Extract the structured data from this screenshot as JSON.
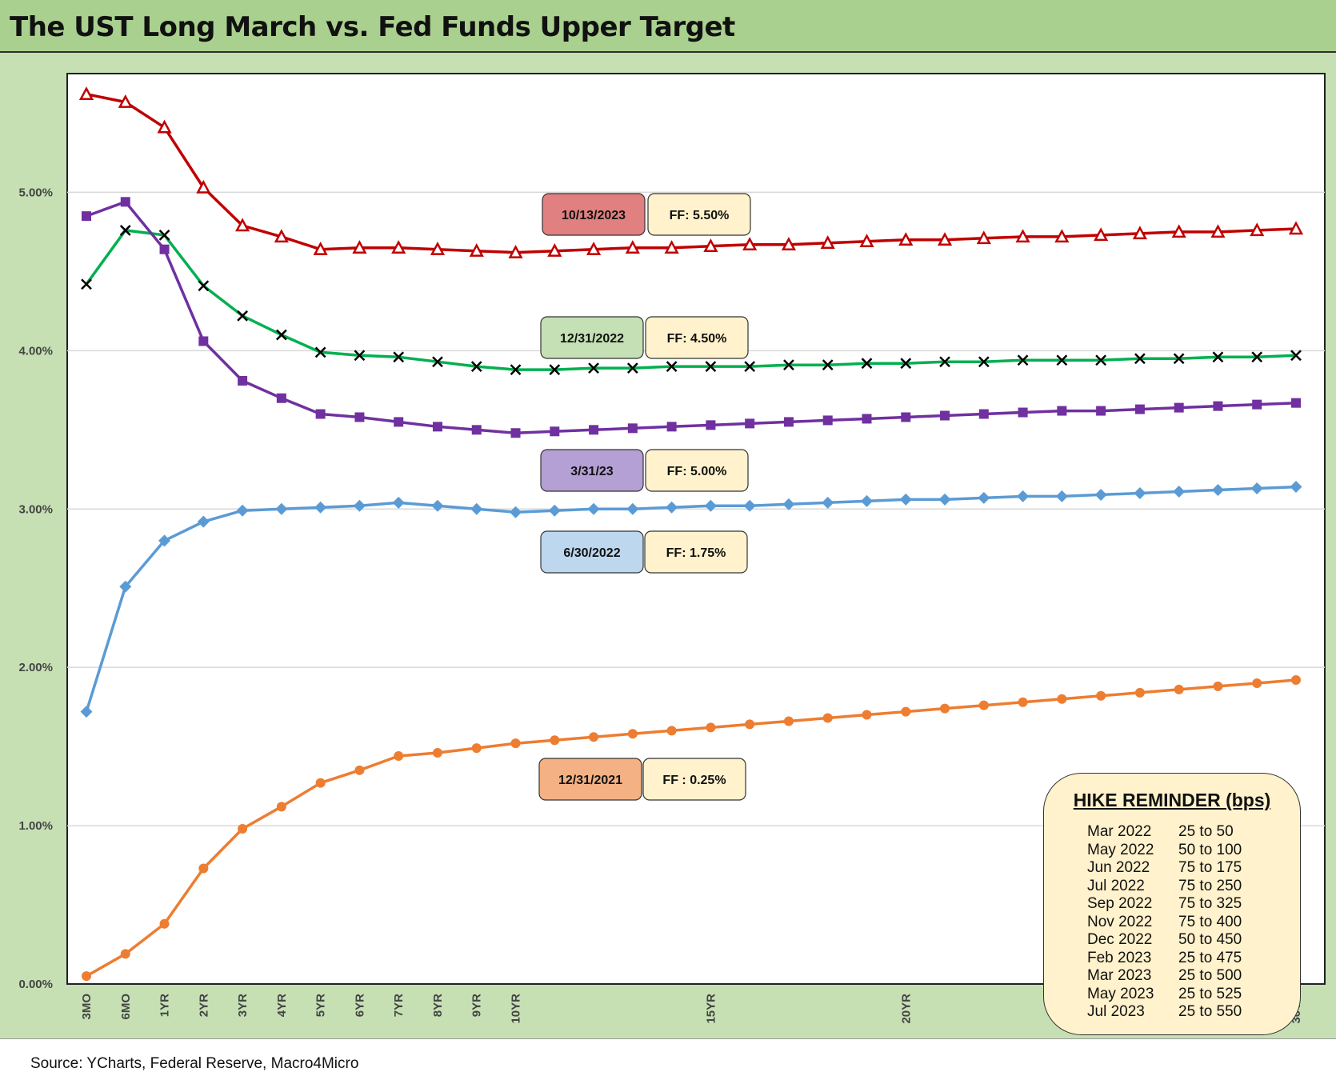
{
  "title": "The UST Long March vs. Fed Funds Upper Target",
  "source": "Source: YCharts, Federal Reserve, Macro4Micro",
  "hike_box": {
    "title": "HIKE REMINDER (bps)",
    "rows": [
      {
        "date": "Mar 2022",
        "value": "25 to 50"
      },
      {
        "date": "May 2022",
        "value": "50 to 100"
      },
      {
        "date": "Jun 2022",
        "value": "75 to 175"
      },
      {
        "date": "Jul 2022",
        "value": "75 to 250"
      },
      {
        "date": "Sep 2022",
        "value": "75 to 325"
      },
      {
        "date": "Nov 2022",
        "value": "75 to 400"
      },
      {
        "date": "Dec 2022",
        "value": "50 to 450"
      },
      {
        "date": "Feb 2023",
        "value": "25 to 475"
      },
      {
        "date": "Mar 2023",
        "value": "25 to 500"
      },
      {
        "date": "May 2023",
        "value": "25 to 525"
      },
      {
        "date": "Jul 2023",
        "value": "25 to 550"
      }
    ]
  },
  "chart_data": {
    "type": "line",
    "title": "The UST Long March vs. Fed Funds Upper Target",
    "xlabel": "",
    "ylabel": "",
    "ylim": [
      0,
      5.75
    ],
    "y_ticks": [
      "0.00%",
      "1.00%",
      "2.00%",
      "3.00%",
      "4.00%",
      "5.00%"
    ],
    "x_ticks": [
      {
        "label": "3MO",
        "index": 0
      },
      {
        "label": "6MO",
        "index": 1
      },
      {
        "label": "1YR",
        "index": 2
      },
      {
        "label": "2YR",
        "index": 3
      },
      {
        "label": "3YR",
        "index": 4
      },
      {
        "label": "4YR",
        "index": 5
      },
      {
        "label": "5YR",
        "index": 6
      },
      {
        "label": "6YR",
        "index": 7
      },
      {
        "label": "7YR",
        "index": 8
      },
      {
        "label": "8YR",
        "index": 9
      },
      {
        "label": "9YR",
        "index": 10
      },
      {
        "label": "10YR",
        "index": 11
      },
      {
        "label": "15YR",
        "index": 16
      },
      {
        "label": "20YR",
        "index": 21
      },
      {
        "label": "30YR",
        "index": 31
      }
    ],
    "point_count": 32,
    "grid": true,
    "series": [
      {
        "key": "s2023",
        "color": "#c00000",
        "marker": "triangle",
        "date_label": "10/13/2023",
        "ff_label": "FF: 5.50%",
        "date_box_color": "#e08080",
        "values": [
          5.62,
          5.57,
          5.41,
          5.03,
          4.79,
          4.72,
          4.64,
          4.65,
          4.65,
          4.64,
          4.63,
          4.62,
          4.63,
          4.64,
          4.65,
          4.65,
          4.66,
          4.67,
          4.67,
          4.68,
          4.69,
          4.7,
          4.7,
          4.71,
          4.72,
          4.72,
          4.73,
          4.74,
          4.75,
          4.75,
          4.76,
          4.77
        ]
      },
      {
        "key": "s2022dec",
        "color": "#00b050",
        "marker": "x",
        "date_label": "12/31/2022",
        "ff_label": "FF: 4.50%",
        "date_box_color": "#c5e0b4",
        "values": [
          4.42,
          4.76,
          4.73,
          4.41,
          4.22,
          4.1,
          3.99,
          3.97,
          3.96,
          3.93,
          3.9,
          3.88,
          3.88,
          3.89,
          3.89,
          3.9,
          3.9,
          3.9,
          3.91,
          3.91,
          3.92,
          3.92,
          3.93,
          3.93,
          3.94,
          3.94,
          3.94,
          3.95,
          3.95,
          3.96,
          3.96,
          3.97
        ]
      },
      {
        "key": "s2023mar",
        "color": "#7030a0",
        "marker": "square",
        "date_label": "3/31/23",
        "ff_label": "FF: 5.00%",
        "date_box_color": "#b4a0d4",
        "values": [
          4.85,
          4.94,
          4.64,
          4.06,
          3.81,
          3.7,
          3.6,
          3.58,
          3.55,
          3.52,
          3.5,
          3.48,
          3.49,
          3.5,
          3.51,
          3.52,
          3.53,
          3.54,
          3.55,
          3.56,
          3.57,
          3.58,
          3.59,
          3.6,
          3.61,
          3.62,
          3.62,
          3.63,
          3.64,
          3.65,
          3.66,
          3.67
        ]
      },
      {
        "key": "s2022jun",
        "color": "#5b9bd5",
        "marker": "diamond",
        "date_label": "6/30/2022",
        "ff_label": "FF: 1.75%",
        "date_box_color": "#bdd7ee",
        "values": [
          1.72,
          2.51,
          2.8,
          2.92,
          2.99,
          3.0,
          3.01,
          3.02,
          3.04,
          3.02,
          3.0,
          2.98,
          2.99,
          3.0,
          3.0,
          3.01,
          3.02,
          3.02,
          3.03,
          3.04,
          3.05,
          3.06,
          3.06,
          3.07,
          3.08,
          3.08,
          3.09,
          3.1,
          3.11,
          3.12,
          3.13,
          3.14
        ]
      },
      {
        "key": "s2021",
        "color": "#ed7d31",
        "marker": "circle",
        "date_label": "12/31/2021",
        "ff_label": "FF : 0.25%",
        "date_box_color": "#f4b183",
        "values": [
          0.05,
          0.19,
          0.38,
          0.73,
          0.98,
          1.12,
          1.27,
          1.35,
          1.44,
          1.46,
          1.49,
          1.52,
          1.54,
          1.56,
          1.58,
          1.6,
          1.62,
          1.64,
          1.66,
          1.68,
          1.7,
          1.72,
          1.74,
          1.76,
          1.78,
          1.8,
          1.82,
          1.84,
          1.86,
          1.88,
          1.9,
          1.92
        ]
      }
    ]
  }
}
